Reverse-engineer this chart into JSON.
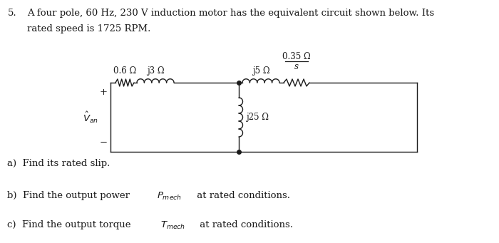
{
  "bg_color": "#ffffff",
  "circuit_color": "#1a1a1a",
  "label_R1": "0.6 Ω",
  "label_X1": "j3 Ω",
  "label_X2": "j5 Ω",
  "label_R2_over_s": "0.35 Ω",
  "label_s": "s",
  "label_Xm": "j25 Ω",
  "fig_width": 7.0,
  "fig_height": 3.41,
  "title_num": "5.",
  "title_text1": "  A four pole, 60 Hz, 230 V induction motor has the equivalent circuit shown below. Its",
  "title_text2": "  rated speed is 1725 RPM.",
  "qa": "a)  Find its rated slip.",
  "qb1": "b)  Find the output power ",
  "qb2": " at rated conditions.",
  "qc1": "c)  Find the output torque ",
  "qc2": " at rated conditions."
}
